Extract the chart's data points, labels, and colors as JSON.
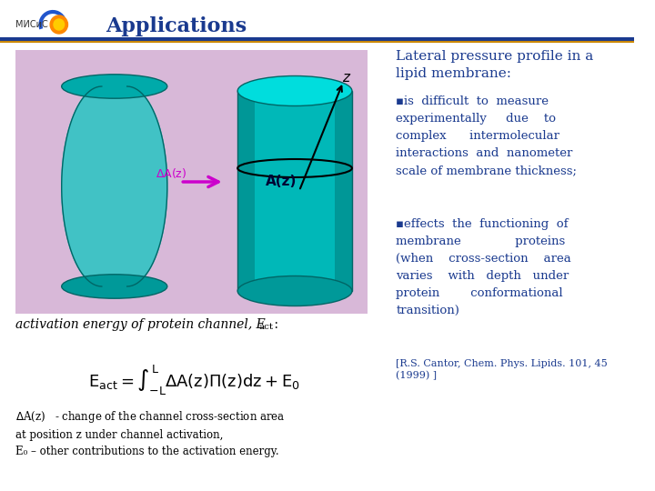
{
  "bg_color": "#ffffff",
  "header_text": "Applications",
  "header_color": "#1a3a8f",
  "header_line_color": "#1a3a8f",
  "header_line_color2": "#cc8800",
  "image_bg_color": "#d8b8d8",
  "title_right": "Lateral pressure profile in a\nlipid membrane:",
  "bullet1": "▪is  difficult  to  measure\nexperimentally     due    to\ncomplex      intermolecular\ninteractions  and  nanometer\nscale of membrane thickness;",
  "bullet2": "▪effects  the  functioning  of\nmembrane              proteins\n(when    cross-section    area\nvaries    with   depth   under\nprotein        conformational\ntransition)",
  "ref_text": "[R.S. Cantor, Chem. Phys. Lipids. 101, 45\n(1999) ]",
  "activation_text": "activation energy of protein channel, E",
  "activation_sub": "act",
  "activation_colon": " :",
  "delta_a_text": "ΔA(z)   - change of the channel cross-section area\nat position z under channel activation,\nE₀ – other contributions to the activation energy.",
  "text_color": "#1a3a8f",
  "body_text_color": "#1a3a8f",
  "formula_color": "#000000",
  "teal_color": "#00c8c8"
}
